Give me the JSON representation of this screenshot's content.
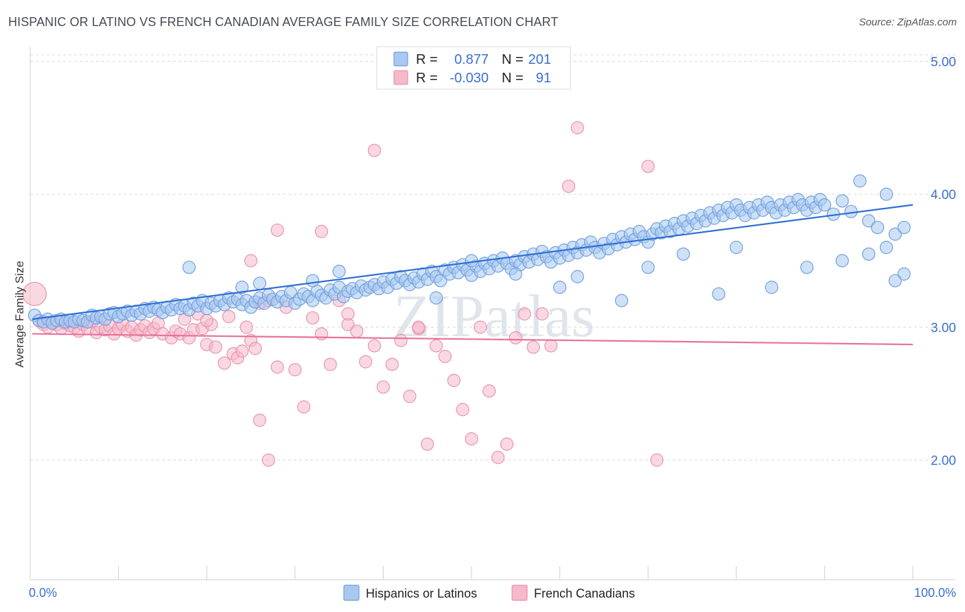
{
  "title": "HISPANIC OR LATINO VS FRENCH CANADIAN AVERAGE FAMILY SIZE CORRELATION CHART",
  "source": "Source: ZipAtlas.com",
  "colors": {
    "blue_fill": "#a8c8f0",
    "blue_stroke": "#6f9fde",
    "blue_line": "#2f6fd6",
    "pink_fill": "#f6b8cb",
    "pink_stroke": "#e992b0",
    "pink_line": "#e8719a",
    "tick_text": "#3b6fd0",
    "grid": "#d8d8d8"
  },
  "legend": {
    "rows": [
      {
        "r_label": "R =",
        "r_value": "0.877",
        "n_label": "N =",
        "n_value": "201",
        "series": "blue"
      },
      {
        "r_label": "R =",
        "r_value": "-0.030",
        "n_label": "N =",
        "n_value": "91",
        "series": "pink"
      }
    ]
  },
  "bottom_legend": [
    "Hispanics or Latinos",
    "French Canadians"
  ],
  "watermark": "ZIPatlas",
  "chart_data": {
    "type": "scatter",
    "title": "HISPANIC OR LATINO VS FRENCH CANADIAN AVERAGE FAMILY SIZE CORRELATION CHART",
    "xlabel": "",
    "ylabel": "Average Family Size",
    "xlim": [
      0,
      100
    ],
    "ylim": [
      1.1,
      5.1
    ],
    "x_tick_labels": [
      "0.0%",
      "100.0%"
    ],
    "y_ticks": [
      2.0,
      3.0,
      4.0,
      5.0
    ],
    "y_tick_labels": [
      "2.00",
      "3.00",
      "4.00",
      "5.00"
    ],
    "grid": true,
    "legend_position": "top-center",
    "series": [
      {
        "name": "Hispanics or Latinos",
        "color": "#a8c8f0",
        "trend": {
          "x": [
            0,
            100
          ],
          "y": [
            3.06,
            3.92
          ]
        },
        "points": [
          [
            0.5,
            3.09
          ],
          [
            1,
            3.05
          ],
          [
            1.5,
            3.04
          ],
          [
            2,
            3.06
          ],
          [
            2.5,
            3.03
          ],
          [
            3,
            3.05
          ],
          [
            3.5,
            3.06
          ],
          [
            4,
            3.04
          ],
          [
            4.5,
            3.05
          ],
          [
            5,
            3.04
          ],
          [
            5.5,
            3.06
          ],
          [
            6,
            3.05
          ],
          [
            6.5,
            3.04
          ],
          [
            7,
            3.09
          ],
          [
            7.5,
            3.07
          ],
          [
            8,
            3.08
          ],
          [
            8.5,
            3.06
          ],
          [
            9,
            3.1
          ],
          [
            9.5,
            3.11
          ],
          [
            10,
            3.08
          ],
          [
            10.5,
            3.1
          ],
          [
            11,
            3.12
          ],
          [
            11.5,
            3.09
          ],
          [
            12,
            3.12
          ],
          [
            12.5,
            3.1
          ],
          [
            13,
            3.14
          ],
          [
            13.5,
            3.12
          ],
          [
            14,
            3.15
          ],
          [
            14.5,
            3.13
          ],
          [
            15,
            3.11
          ],
          [
            15.5,
            3.15
          ],
          [
            16,
            3.13
          ],
          [
            16.5,
            3.17
          ],
          [
            17,
            3.14
          ],
          [
            17.5,
            3.16
          ],
          [
            18,
            3.13
          ],
          [
            18.5,
            3.18
          ],
          [
            19,
            3.16
          ],
          [
            19.5,
            3.2
          ],
          [
            20,
            3.14
          ],
          [
            20.5,
            3.18
          ],
          [
            21,
            3.16
          ],
          [
            21.5,
            3.2
          ],
          [
            22,
            3.17
          ],
          [
            22.5,
            3.22
          ],
          [
            23,
            3.19
          ],
          [
            23.5,
            3.21
          ],
          [
            24,
            3.17
          ],
          [
            24.5,
            3.2
          ],
          [
            25,
            3.15
          ],
          [
            25.5,
            3.19
          ],
          [
            26,
            3.22
          ],
          [
            26.5,
            3.18
          ],
          [
            27,
            3.24
          ],
          [
            27.5,
            3.21
          ],
          [
            28,
            3.19
          ],
          [
            28.5,
            3.23
          ],
          [
            29,
            3.2
          ],
          [
            29.5,
            3.26
          ],
          [
            30,
            3.18
          ],
          [
            30.5,
            3.21
          ],
          [
            31,
            3.25
          ],
          [
            31.5,
            3.23
          ],
          [
            32,
            3.2
          ],
          [
            32.5,
            3.27
          ],
          [
            33,
            3.24
          ],
          [
            33.5,
            3.22
          ],
          [
            34,
            3.28
          ],
          [
            34.5,
            3.25
          ],
          [
            35,
            3.3
          ],
          [
            35.5,
            3.23
          ],
          [
            36,
            3.27
          ],
          [
            36.5,
            3.29
          ],
          [
            37,
            3.26
          ],
          [
            37.5,
            3.31
          ],
          [
            38,
            3.28
          ],
          [
            38.5,
            3.3
          ],
          [
            39,
            3.32
          ],
          [
            39.5,
            3.29
          ],
          [
            40,
            3.34
          ],
          [
            40.5,
            3.3
          ],
          [
            41,
            3.36
          ],
          [
            41.5,
            3.33
          ],
          [
            42,
            3.38
          ],
          [
            42.5,
            3.35
          ],
          [
            43,
            3.32
          ],
          [
            43.5,
            3.37
          ],
          [
            44,
            3.34
          ],
          [
            44.5,
            3.4
          ],
          [
            45,
            3.36
          ],
          [
            45.5,
            3.42
          ],
          [
            46,
            3.38
          ],
          [
            46.5,
            3.35
          ],
          [
            47,
            3.43
          ],
          [
            47.5,
            3.4
          ],
          [
            48,
            3.45
          ],
          [
            48.5,
            3.41
          ],
          [
            49,
            3.47
          ],
          [
            49.5,
            3.43
          ],
          [
            50,
            3.39
          ],
          [
            50.5,
            3.46
          ],
          [
            51,
            3.42
          ],
          [
            51.5,
            3.48
          ],
          [
            52,
            3.44
          ],
          [
            52.5,
            3.5
          ],
          [
            53,
            3.46
          ],
          [
            53.5,
            3.52
          ],
          [
            54,
            3.48
          ],
          [
            54.5,
            3.44
          ],
          [
            55,
            3.5
          ],
          [
            55.5,
            3.47
          ],
          [
            56,
            3.53
          ],
          [
            56.5,
            3.49
          ],
          [
            57,
            3.55
          ],
          [
            57.5,
            3.51
          ],
          [
            58,
            3.57
          ],
          [
            58.5,
            3.53
          ],
          [
            59,
            3.49
          ],
          [
            59.5,
            3.56
          ],
          [
            60,
            3.52
          ],
          [
            60.5,
            3.58
          ],
          [
            61,
            3.54
          ],
          [
            61.5,
            3.6
          ],
          [
            62,
            3.56
          ],
          [
            62.5,
            3.62
          ],
          [
            63,
            3.58
          ],
          [
            63.5,
            3.64
          ],
          [
            64,
            3.6
          ],
          [
            64.5,
            3.56
          ],
          [
            65,
            3.63
          ],
          [
            65.5,
            3.59
          ],
          [
            66,
            3.66
          ],
          [
            66.5,
            3.62
          ],
          [
            67,
            3.68
          ],
          [
            67.5,
            3.64
          ],
          [
            68,
            3.7
          ],
          [
            68.5,
            3.66
          ],
          [
            69,
            3.72
          ],
          [
            69.5,
            3.68
          ],
          [
            70,
            3.64
          ],
          [
            70.5,
            3.7
          ],
          [
            71,
            3.74
          ],
          [
            71.5,
            3.71
          ],
          [
            72,
            3.76
          ],
          [
            72.5,
            3.72
          ],
          [
            73,
            3.78
          ],
          [
            73.5,
            3.74
          ],
          [
            74,
            3.8
          ],
          [
            74.5,
            3.76
          ],
          [
            75,
            3.82
          ],
          [
            75.5,
            3.78
          ],
          [
            76,
            3.84
          ],
          [
            76.5,
            3.8
          ],
          [
            77,
            3.86
          ],
          [
            77.5,
            3.82
          ],
          [
            78,
            3.88
          ],
          [
            78.5,
            3.84
          ],
          [
            79,
            3.9
          ],
          [
            79.5,
            3.86
          ],
          [
            80,
            3.92
          ],
          [
            80.5,
            3.88
          ],
          [
            81,
            3.84
          ],
          [
            81.5,
            3.9
          ],
          [
            82,
            3.86
          ],
          [
            82.5,
            3.92
          ],
          [
            83,
            3.88
          ],
          [
            83.5,
            3.94
          ],
          [
            84,
            3.9
          ],
          [
            84.5,
            3.86
          ],
          [
            85,
            3.92
          ],
          [
            85.5,
            3.88
          ],
          [
            86,
            3.94
          ],
          [
            86.5,
            3.9
          ],
          [
            87,
            3.96
          ],
          [
            87.5,
            3.92
          ],
          [
            88,
            3.88
          ],
          [
            88.5,
            3.94
          ],
          [
            89,
            3.9
          ],
          [
            89.5,
            3.96
          ],
          [
            90,
            3.92
          ],
          [
            91,
            3.85
          ],
          [
            92,
            3.95
          ],
          [
            93,
            3.87
          ],
          [
            94,
            4.1
          ],
          [
            95,
            3.8
          ],
          [
            96,
            3.75
          ],
          [
            97,
            4.0
          ],
          [
            98,
            3.7
          ],
          [
            99,
            3.4
          ],
          [
            60,
            3.3
          ],
          [
            32,
            3.35
          ],
          [
            24,
            3.3
          ],
          [
            35,
            3.42
          ],
          [
            18,
            3.45
          ],
          [
            67,
            3.2
          ],
          [
            78,
            3.25
          ],
          [
            84,
            3.3
          ],
          [
            88,
            3.45
          ],
          [
            92,
            3.5
          ],
          [
            95,
            3.55
          ],
          [
            97,
            3.6
          ],
          [
            98,
            3.35
          ],
          [
            99,
            3.75
          ],
          [
            26,
            3.33
          ],
          [
            46,
            3.22
          ],
          [
            50,
            3.5
          ],
          [
            55,
            3.4
          ],
          [
            62,
            3.38
          ],
          [
            70,
            3.45
          ],
          [
            74,
            3.55
          ],
          [
            80,
            3.6
          ]
        ]
      },
      {
        "name": "French Canadians",
        "color": "#f6b8cb",
        "trend": {
          "x": [
            0,
            100
          ],
          "y": [
            2.95,
            2.87
          ]
        },
        "points": [
          [
            0.5,
            3.25
          ],
          [
            1,
            3.05
          ],
          [
            1.5,
            3.02
          ],
          [
            2,
            3.0
          ],
          [
            2.5,
            3.04
          ],
          [
            3,
            3.02
          ],
          [
            3.5,
            2.99
          ],
          [
            4,
            3.03
          ],
          [
            4.5,
            3.01
          ],
          [
            5,
            3.0
          ],
          [
            5.5,
            2.97
          ],
          [
            6,
            3.02
          ],
          [
            6.5,
            2.99
          ],
          [
            7,
            3.04
          ],
          [
            7.5,
            2.96
          ],
          [
            8,
            3.0
          ],
          [
            8.5,
            2.98
          ],
          [
            9,
            3.01
          ],
          [
            9.5,
            2.95
          ],
          [
            10,
            2.99
          ],
          [
            10.5,
            3.02
          ],
          [
            11,
            2.97
          ],
          [
            11.5,
            3.0
          ],
          [
            12,
            2.94
          ],
          [
            12.5,
            2.98
          ],
          [
            13,
            3.01
          ],
          [
            13.5,
            2.96
          ],
          [
            14,
            2.99
          ],
          [
            14.5,
            3.03
          ],
          [
            15,
            2.95
          ],
          [
            16,
            2.92
          ],
          [
            16.5,
            2.97
          ],
          [
            17,
            2.95
          ],
          [
            17.5,
            3.06
          ],
          [
            18,
            2.92
          ],
          [
            18.5,
            2.98
          ],
          [
            19,
            3.1
          ],
          [
            19.5,
            2.99
          ],
          [
            20,
            2.87
          ],
          [
            20.5,
            3.02
          ],
          [
            21,
            2.85
          ],
          [
            22,
            2.73
          ],
          [
            22.5,
            3.08
          ],
          [
            23,
            2.8
          ],
          [
            23.5,
            2.77
          ],
          [
            24,
            2.82
          ],
          [
            24.5,
            3.0
          ],
          [
            25,
            2.9
          ],
          [
            25.5,
            2.84
          ],
          [
            26,
            3.18
          ],
          [
            27,
            3.2
          ],
          [
            28,
            2.7
          ],
          [
            29,
            3.15
          ],
          [
            30,
            2.68
          ],
          [
            31,
            2.4
          ],
          [
            32,
            3.07
          ],
          [
            33,
            2.95
          ],
          [
            34,
            2.72
          ],
          [
            35,
            3.2
          ],
          [
            36,
            3.02
          ],
          [
            37,
            2.97
          ],
          [
            38,
            2.74
          ],
          [
            39,
            2.86
          ],
          [
            40,
            2.55
          ],
          [
            41,
            2.72
          ],
          [
            42,
            2.9
          ],
          [
            43,
            2.48
          ],
          [
            44,
            2.99
          ],
          [
            45,
            2.12
          ],
          [
            46,
            2.86
          ],
          [
            47,
            2.78
          ],
          [
            48,
            2.6
          ],
          [
            49,
            2.38
          ],
          [
            50,
            2.16
          ],
          [
            51,
            3.0
          ],
          [
            52,
            2.52
          ],
          [
            53,
            2.02
          ],
          [
            54,
            2.12
          ],
          [
            55,
            2.92
          ],
          [
            57,
            2.85
          ],
          [
            58,
            3.1
          ],
          [
            59,
            2.86
          ],
          [
            61,
            4.06
          ],
          [
            62,
            4.5
          ],
          [
            70,
            4.21
          ],
          [
            71,
            2.0
          ],
          [
            28,
            3.73
          ],
          [
            33,
            3.72
          ],
          [
            26,
            2.3
          ],
          [
            27,
            2.0
          ],
          [
            25,
            3.5
          ],
          [
            36,
            3.1
          ],
          [
            39,
            4.33
          ],
          [
            44,
            3.0
          ],
          [
            56,
            3.1
          ],
          [
            20,
            3.05
          ]
        ]
      }
    ]
  }
}
